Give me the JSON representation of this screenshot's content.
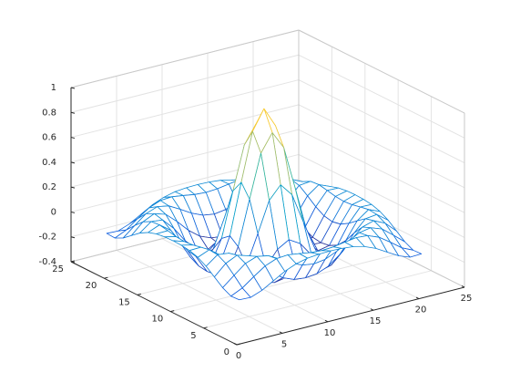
{
  "chart_data": {
    "type": "mesh",
    "x": [
      1,
      2.25,
      3.5,
      4.75,
      6,
      7.25,
      8.5,
      9.75,
      11,
      12.25,
      13.5,
      14.75,
      16,
      17.25,
      18.5,
      19.75,
      21
    ],
    "y": [
      1,
      2.25,
      3.5,
      4.75,
      6,
      7.25,
      8.5,
      9.75,
      11,
      12.25,
      13.5,
      14.75,
      16,
      17.25,
      18.5,
      19.75,
      21
    ],
    "z": [
      [
        -0.084,
        -0.088,
        -0.054,
        -0.001,
        0.052,
        0.09,
        0.112,
        0.121,
        0.124,
        0.121,
        0.112,
        0.09,
        0.052,
        -0.001,
        -0.054,
        -0.088,
        -0.084
      ],
      [
        -0.088,
        -0.046,
        0.022,
        0.085,
        0.121,
        0.128,
        0.115,
        0.1,
        0.094,
        0.1,
        0.115,
        0.128,
        0.121,
        0.085,
        0.022,
        -0.046,
        -0.088
      ],
      [
        -0.054,
        0.022,
        0.095,
        0.128,
        0.111,
        0.061,
        0.007,
        -0.033,
        -0.047,
        -0.033,
        0.007,
        0.061,
        0.111,
        0.128,
        0.095,
        0.022,
        -0.054
      ],
      [
        -0.001,
        0.085,
        0.128,
        0.1,
        0.019,
        -0.075,
        -0.145,
        -0.182,
        -0.192,
        -0.182,
        -0.145,
        -0.075,
        0.019,
        0.1,
        0.128,
        0.085,
        -0.001
      ],
      [
        0.052,
        0.121,
        0.111,
        0.019,
        -0.104,
        -0.192,
        -0.217,
        -0.201,
        -0.189,
        -0.201,
        -0.217,
        -0.192,
        -0.104,
        0.019,
        0.111,
        0.121,
        0.052
      ],
      [
        0.09,
        0.128,
        0.061,
        -0.075,
        -0.192,
        -0.21,
        -0.124,
        -0.007,
        0.047,
        -0.007,
        -0.124,
        -0.21,
        -0.192,
        -0.075,
        0.061,
        0.128,
        0.09
      ],
      [
        0.112,
        0.115,
        0.007,
        -0.145,
        -0.217,
        -0.124,
        0.109,
        0.352,
        0.455,
        0.352,
        0.109,
        -0.124,
        -0.217,
        -0.145,
        0.007,
        0.115,
        0.112
      ],
      [
        0.121,
        0.1,
        -0.033,
        -0.182,
        -0.201,
        -0.007,
        0.352,
        0.699,
        0.841,
        0.699,
        0.352,
        -0.007,
        -0.201,
        -0.182,
        -0.033,
        0.1,
        0.121
      ],
      [
        0.124,
        0.094,
        -0.047,
        -0.192,
        -0.189,
        0.047,
        0.455,
        0.841,
        1,
        0.841,
        0.455,
        0.047,
        -0.189,
        -0.192,
        -0.047,
        0.094,
        0.124
      ],
      [
        0.121,
        0.1,
        -0.033,
        -0.182,
        -0.201,
        -0.007,
        0.352,
        0.699,
        0.841,
        0.699,
        0.352,
        -0.007,
        -0.201,
        -0.182,
        -0.033,
        0.1,
        0.121
      ],
      [
        0.112,
        0.115,
        0.007,
        -0.145,
        -0.217,
        -0.124,
        0.109,
        0.352,
        0.455,
        0.352,
        0.109,
        -0.124,
        -0.217,
        -0.145,
        0.007,
        0.115,
        0.112
      ],
      [
        0.09,
        0.128,
        0.061,
        -0.075,
        -0.192,
        -0.21,
        -0.124,
        -0.007,
        0.047,
        -0.007,
        -0.124,
        -0.21,
        -0.192,
        -0.075,
        0.061,
        0.128,
        0.09
      ],
      [
        0.052,
        0.121,
        0.111,
        0.019,
        -0.104,
        -0.192,
        -0.217,
        -0.201,
        -0.189,
        -0.201,
        -0.217,
        -0.192,
        -0.104,
        0.019,
        0.111,
        0.121,
        0.052
      ],
      [
        -0.001,
        0.085,
        0.128,
        0.1,
        0.019,
        -0.075,
        -0.145,
        -0.182,
        -0.192,
        -0.182,
        -0.145,
        -0.075,
        0.019,
        0.1,
        0.128,
        0.085,
        -0.001
      ],
      [
        -0.054,
        0.022,
        0.095,
        0.128,
        0.111,
        0.061,
        0.007,
        -0.033,
        -0.047,
        -0.033,
        0.007,
        0.061,
        0.111,
        0.128,
        0.095,
        0.022,
        -0.054
      ],
      [
        -0.088,
        -0.046,
        0.022,
        0.085,
        0.121,
        0.128,
        0.115,
        0.1,
        0.094,
        0.1,
        0.115,
        0.128,
        0.121,
        0.085,
        0.022,
        -0.046,
        -0.088
      ],
      [
        -0.084,
        -0.088,
        -0.054,
        -0.001,
        0.052,
        0.09,
        0.112,
        0.121,
        0.124,
        0.121,
        0.112,
        0.09,
        0.052,
        -0.001,
        -0.054,
        -0.088,
        -0.084
      ]
    ],
    "xlim": [
      0,
      25
    ],
    "ylim": [
      0,
      25
    ],
    "zlim": [
      -0.4,
      1
    ],
    "xticks": [
      0,
      5,
      10,
      15,
      20,
      25
    ],
    "yticks": [
      0,
      5,
      10,
      15,
      20,
      25
    ],
    "zticks": [
      -0.4,
      -0.2,
      0,
      0.2,
      0.4,
      0.6,
      0.8,
      1
    ],
    "grid": true,
    "colormap": "parula"
  }
}
